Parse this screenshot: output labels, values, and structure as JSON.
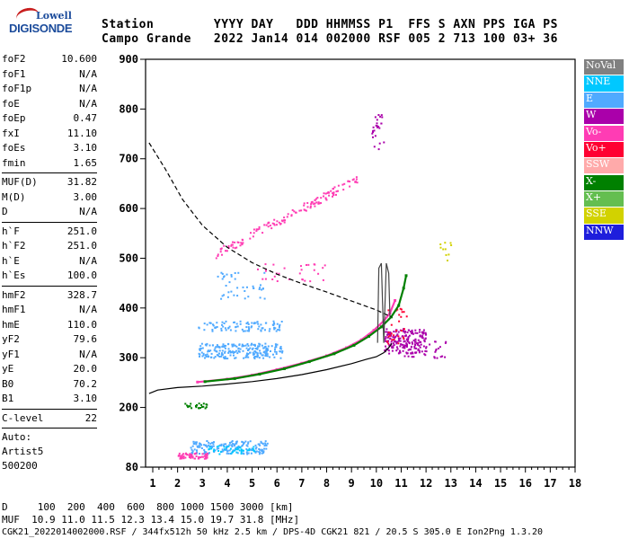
{
  "logo": {
    "line1": "Lowell",
    "line2": "DIGISONDE"
  },
  "header": {
    "row1": "Station        YYYY DAY   DDD HHMMSS P1  FFS S AXN PPS IGA PS",
    "row2": "Campo Grande   2022 Jan14 014 002000 RSF 005 2 713 100 03+ 36"
  },
  "params": {
    "group1": [
      {
        "k": "foF2",
        "v": "10.600"
      },
      {
        "k": "foF1",
        "v": "N/A"
      },
      {
        "k": "foF1p",
        "v": "N/A"
      },
      {
        "k": "foE",
        "v": "N/A"
      },
      {
        "k": "foEp",
        "v": "0.47"
      },
      {
        "k": "fxI",
        "v": "11.10"
      },
      {
        "k": "foEs",
        "v": "3.10"
      },
      {
        "k": "fmin",
        "v": "1.65"
      }
    ],
    "group2": [
      {
        "k": "MUF(D)",
        "v": "31.82"
      },
      {
        "k": "M(D)",
        "v": "3.00"
      },
      {
        "k": "D",
        "v": "N/A"
      }
    ],
    "group3": [
      {
        "k": "h`F",
        "v": "251.0"
      },
      {
        "k": "h`F2",
        "v": "251.0"
      },
      {
        "k": "h`E",
        "v": "N/A"
      },
      {
        "k": "h`Es",
        "v": "100.0"
      }
    ],
    "group4": [
      {
        "k": "hmF2",
        "v": "328.7"
      },
      {
        "k": "hmF1",
        "v": "N/A"
      },
      {
        "k": "hmE",
        "v": "110.0"
      },
      {
        "k": "yF2",
        "v": "79.6"
      },
      {
        "k": "yF1",
        "v": "N/A"
      },
      {
        "k": "yE",
        "v": "20.0"
      },
      {
        "k": "B0",
        "v": "70.2"
      },
      {
        "k": "B1",
        "v": "3.10"
      }
    ],
    "group5": [
      {
        "k": "C-level",
        "v": "22"
      }
    ],
    "auto": [
      "Auto:",
      "Artist5",
      "500200"
    ]
  },
  "legend": [
    {
      "label": "NoVal",
      "color": "#808080"
    },
    {
      "label": "NNE",
      "color": "#00c8ff"
    },
    {
      "label": "E",
      "color": "#50aaff"
    },
    {
      "label": "W",
      "color": "#aa00aa"
    },
    {
      "label": "Vo-",
      "color": "#ff3cb4"
    },
    {
      "label": "Vo+",
      "color": "#ff0032"
    },
    {
      "label": "SSW",
      "color": "#ffaaaa"
    },
    {
      "label": "X-",
      "color": "#008000"
    },
    {
      "label": "X+",
      "color": "#64be50"
    },
    {
      "label": "SSE",
      "color": "#d2d200"
    },
    {
      "label": "NNW",
      "color": "#1e1edc"
    }
  ],
  "footer": {
    "line1": "D     100  200  400  600  800 1000 1500 3000 [km]",
    "line2": "MUF  10.9 11.0 11.5 12.3 13.4 15.0 19.7 31.8 [MHz]",
    "line3": "CGK21_2022014002000.RSF / 344fx512h 50 kHz 2.5 km / DPS-4D CGK21 821 / 20.5 S 305.0 E Ion2Png 1.3.20"
  },
  "chart_data": {
    "type": "scatter",
    "xlim": [
      0.85,
      18
    ],
    "ylim": [
      80,
      900
    ],
    "x_ticks": [
      1,
      2,
      3,
      4,
      5,
      6,
      7,
      8,
      9,
      10,
      11,
      12,
      13,
      14,
      15,
      16,
      17,
      18
    ],
    "y_ticks": [
      80,
      200,
      300,
      400,
      500,
      600,
      700,
      800,
      900
    ],
    "x_tick_labels": [
      "1",
      "2",
      "3",
      "4",
      "5",
      "6",
      "7",
      "8",
      "9",
      "10",
      "11",
      "12",
      "13",
      "14",
      "15",
      "16",
      "17",
      "18"
    ],
    "y_tick_labels": [
      "80",
      "200",
      "300",
      "400",
      "500",
      "600",
      "700",
      "800",
      "900"
    ],
    "curves": [
      {
        "name": "trace-o",
        "color": "#ff3cb4",
        "points": [
          [
            2.8,
            251
          ],
          [
            4,
            257
          ],
          [
            5,
            265
          ],
          [
            6,
            276
          ],
          [
            7,
            289
          ],
          [
            8,
            304
          ],
          [
            8.8,
            320
          ],
          [
            9.4,
            336
          ],
          [
            9.9,
            355
          ],
          [
            10.3,
            374
          ],
          [
            10.55,
            390
          ],
          [
            10.75,
            415
          ]
        ]
      },
      {
        "name": "trace-x",
        "color": "#008000",
        "points": [
          [
            3.1,
            252
          ],
          [
            4.3,
            258
          ],
          [
            5.3,
            267
          ],
          [
            6.3,
            278
          ],
          [
            7.3,
            292
          ],
          [
            8.3,
            308
          ],
          [
            9.1,
            325
          ],
          [
            9.7,
            343
          ],
          [
            10.2,
            362
          ],
          [
            10.6,
            382
          ],
          [
            10.9,
            405
          ],
          [
            11.1,
            440
          ],
          [
            11.2,
            465
          ]
        ]
      },
      {
        "name": "profile",
        "color": "#000000",
        "points": [
          [
            0.85,
            228
          ],
          [
            1.2,
            235
          ],
          [
            2,
            240
          ],
          [
            3,
            243
          ],
          [
            4,
            247
          ],
          [
            5,
            252
          ],
          [
            6,
            258
          ],
          [
            7,
            266
          ],
          [
            8,
            276
          ],
          [
            9,
            288
          ],
          [
            9.6,
            297
          ],
          [
            10,
            302
          ],
          [
            10.3,
            310
          ],
          [
            10.5,
            320
          ],
          [
            10.62,
            328.7
          ]
        ]
      },
      {
        "name": "model",
        "color": "#000000",
        "dashed": true,
        "points": [
          [
            0.85,
            732
          ],
          [
            1.5,
            680
          ],
          [
            2.2,
            618
          ],
          [
            3,
            566
          ],
          [
            4,
            522
          ],
          [
            5,
            491
          ],
          [
            6,
            468
          ],
          [
            7,
            449
          ],
          [
            8,
            432
          ],
          [
            9,
            414
          ],
          [
            10,
            396
          ],
          [
            10.6,
            382
          ]
        ]
      },
      {
        "name": "virtual",
        "color": "#444444",
        "points": [
          [
            10.05,
            330
          ],
          [
            10.1,
            480
          ],
          [
            10.2,
            490
          ],
          [
            10.3,
            330
          ],
          [
            10.4,
            490
          ],
          [
            10.5,
            470
          ],
          [
            10.55,
            380
          ]
        ]
      }
    ],
    "clusters": [
      {
        "color": "#50aaff",
        "x": [
          2.8,
          6.2
        ],
        "y": [
          300,
          330
        ],
        "n": 220
      },
      {
        "color": "#50aaff",
        "x": [
          2.8,
          6.2
        ],
        "y": [
          355,
          375
        ],
        "n": 90
      },
      {
        "color": "#50aaff",
        "x": [
          2.5,
          5.6
        ],
        "y": [
          108,
          135
        ],
        "n": 170
      },
      {
        "color": "#00c8ff",
        "x": [
          3.2,
          5.2
        ],
        "y": [
          108,
          125
        ],
        "n": 40
      },
      {
        "color": "#ff3cb4",
        "x": [
          2.0,
          3.2
        ],
        "y": [
          98,
          110
        ],
        "n": 60
      },
      {
        "color": "#008000",
        "x": [
          2.2,
          3.2
        ],
        "y": [
          200,
          210
        ],
        "n": 25
      },
      {
        "color": "#ff3cb4",
        "x": [
          3.5,
          9.2
        ],
        "y": [
          510,
          660
        ],
        "n": 140,
        "trend": true
      },
      {
        "color": "#50aaff",
        "x": [
          3.5,
          5.5
        ],
        "y": [
          420,
          480
        ],
        "n": 40
      },
      {
        "color": "#ff3cb4",
        "x": [
          5.0,
          8.0
        ],
        "y": [
          455,
          490
        ],
        "n": 30
      },
      {
        "color": "#aa00aa",
        "x": [
          10.3,
          12.0
        ],
        "y": [
          310,
          360
        ],
        "n": 180
      },
      {
        "color": "#aa00aa",
        "x": [
          10.9,
          12.8
        ],
        "y": [
          300,
          340
        ],
        "n": 40
      },
      {
        "color": "#aa00aa",
        "x": [
          9.8,
          10.3
        ],
        "y": [
          720,
          790
        ],
        "n": 25
      },
      {
        "color": "#ff0032",
        "x": [
          10.4,
          11.2
        ],
        "y": [
          330,
          400
        ],
        "n": 30
      },
      {
        "color": "#d2d200",
        "x": [
          12.5,
          13.0
        ],
        "y": [
          495,
          535
        ],
        "n": 10
      }
    ]
  }
}
